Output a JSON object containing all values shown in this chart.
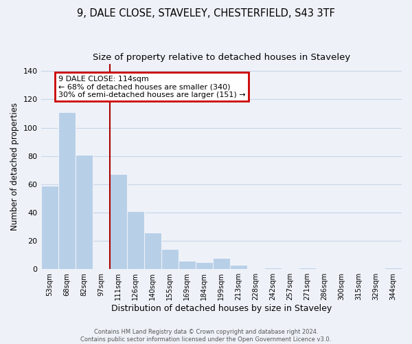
{
  "title": "9, DALE CLOSE, STAVELEY, CHESTERFIELD, S43 3TF",
  "subtitle": "Size of property relative to detached houses in Staveley",
  "xlabel": "Distribution of detached houses by size in Staveley",
  "ylabel": "Number of detached properties",
  "categories": [
    "53sqm",
    "68sqm",
    "82sqm",
    "97sqm",
    "111sqm",
    "126sqm",
    "140sqm",
    "155sqm",
    "169sqm",
    "184sqm",
    "199sqm",
    "213sqm",
    "228sqm",
    "242sqm",
    "257sqm",
    "271sqm",
    "286sqm",
    "300sqm",
    "315sqm",
    "329sqm",
    "344sqm"
  ],
  "values": [
    59,
    111,
    81,
    0,
    67,
    41,
    26,
    14,
    6,
    5,
    8,
    3,
    0,
    1,
    0,
    1,
    0,
    0,
    0,
    0,
    1
  ],
  "bar_color": "#b8cfe8",
  "vline_color": "#aa0000",
  "vline_bar_index": 4,
  "box_text_line1": "9 DALE CLOSE: 114sqm",
  "box_text_line2": "← 68% of detached houses are smaller (340)",
  "box_text_line3": "30% of semi-detached houses are larger (151) →",
  "box_edge_color": "#cc0000",
  "box_facecolor": "white",
  "ylim": [
    0,
    145
  ],
  "yticks": [
    0,
    20,
    40,
    60,
    80,
    100,
    120,
    140
  ],
  "footer_line1": "Contains HM Land Registry data © Crown copyright and database right 2024.",
  "footer_line2": "Contains public sector information licensed under the Open Government Licence v3.0.",
  "background_color": "#eef2f8",
  "grid_color": "#c8d4e8",
  "title_fontsize": 10.5,
  "subtitle_fontsize": 9.5,
  "xlabel_fontsize": 9,
  "ylabel_fontsize": 8.5
}
